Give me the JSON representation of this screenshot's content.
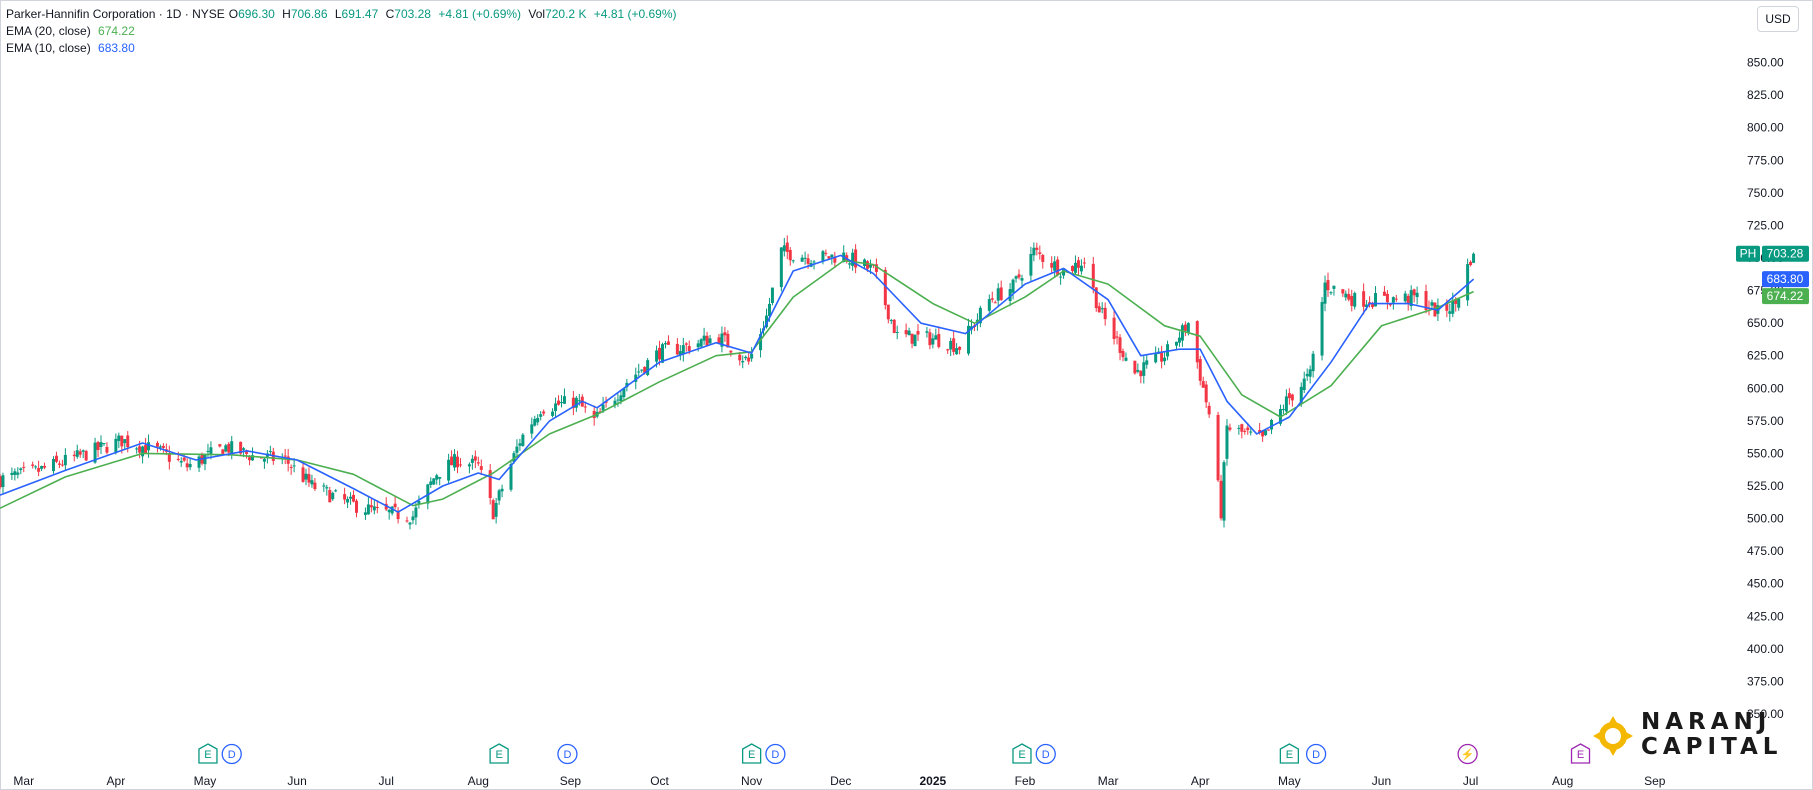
{
  "header": {
    "symbol_title": "Parker-Hannifin Corporation · 1D · NYSE",
    "open_label": "O",
    "open": "696.30",
    "high_label": "H",
    "high": "706.86",
    "low_label": "L",
    "low": "691.47",
    "close_label": "C",
    "close": "703.28",
    "change": "+4.81 (+0.69%)",
    "vol_label": "Vol",
    "volume": "720.2 K",
    "vol_change": "+4.81 (+0.69%)"
  },
  "indicators": [
    {
      "label": "EMA (20, close)",
      "value": "674.22",
      "color": "#4caf50"
    },
    {
      "label": "EMA (10, close)",
      "value": "683.80",
      "color": "#2962ff"
    }
  ],
  "currency": "USD",
  "price_tags": [
    {
      "label": "PH",
      "value": "703.28",
      "color": "#089981"
    },
    {
      "label": "",
      "value": "683.80",
      "color": "#2962ff"
    },
    {
      "label": "",
      "value": "674.22",
      "color": "#4caf50"
    }
  ],
  "logo": {
    "line1": "NARANJ",
    "line2": "CAPITAL"
  },
  "colors": {
    "up": "#089981",
    "down": "#f23645",
    "ema20": "#4caf50",
    "ema10": "#2962ff",
    "axis": "#131722"
  },
  "events": [
    {
      "type": "E",
      "date": "2024-05-02",
      "color": "#089981"
    },
    {
      "type": "D",
      "date": "2024-05-10",
      "color": "#2962ff"
    },
    {
      "type": "E",
      "date": "2024-08-08",
      "color": "#089981"
    },
    {
      "type": "D",
      "date": "2024-08-31",
      "color": "#2962ff"
    },
    {
      "type": "E",
      "date": "2024-11-01",
      "color": "#089981"
    },
    {
      "type": "D",
      "date": "2024-11-09",
      "color": "#2962ff"
    },
    {
      "type": "E",
      "date": "2025-01-31",
      "color": "#089981"
    },
    {
      "type": "D",
      "date": "2025-02-08",
      "color": "#2962ff"
    },
    {
      "type": "E",
      "date": "2025-05-01",
      "color": "#089981"
    },
    {
      "type": "D",
      "date": "2025-05-10",
      "color": "#2962ff"
    },
    {
      "type": "⚡",
      "date": "2025-06-30",
      "color": "#9c27b0"
    },
    {
      "type": "E",
      "date": "2025-08-07",
      "color": "#9c27b0"
    }
  ],
  "chart_data": {
    "type": "candlestick",
    "title": "Parker-Hannifin Corporation · 1D · NYSE",
    "xlim": [
      "2024-02-22",
      "2025-09-28"
    ],
    "ylim": [
      327,
      875
    ],
    "y_ticks": [
      350,
      375,
      400,
      425,
      450,
      475,
      500,
      525,
      550,
      575,
      600,
      625,
      650,
      675,
      700,
      725,
      750,
      775,
      800,
      825,
      850
    ],
    "x_ticks": [
      {
        "label": "Mar",
        "date": "2024-03-01"
      },
      {
        "label": "Apr",
        "date": "2024-04-01"
      },
      {
        "label": "May",
        "date": "2024-05-01"
      },
      {
        "label": "Jun",
        "date": "2024-06-01"
      },
      {
        "label": "Jul",
        "date": "2024-07-01"
      },
      {
        "label": "Aug",
        "date": "2024-08-01"
      },
      {
        "label": "Sep",
        "date": "2024-09-01"
      },
      {
        "label": "Oct",
        "date": "2024-10-01"
      },
      {
        "label": "Nov",
        "date": "2024-11-01"
      },
      {
        "label": "Dec",
        "date": "2024-12-01"
      },
      {
        "label": "2025",
        "date": "2025-01-01"
      },
      {
        "label": "Feb",
        "date": "2025-02-01"
      },
      {
        "label": "Mar",
        "date": "2025-03-01"
      },
      {
        "label": "Apr",
        "date": "2025-04-01"
      },
      {
        "label": "May",
        "date": "2025-05-01"
      },
      {
        "label": "Jun",
        "date": "2025-06-01"
      },
      {
        "label": "Jul",
        "date": "2025-07-01"
      },
      {
        "label": "Aug",
        "date": "2025-08-01"
      },
      {
        "label": "Sep",
        "date": "2025-09-01"
      }
    ],
    "close_path": [
      [
        "2024-02-22",
        530
      ],
      [
        "2024-03-05",
        536
      ],
      [
        "2024-03-20",
        548
      ],
      [
        "2024-04-03",
        560
      ],
      [
        "2024-04-15",
        552
      ],
      [
        "2024-04-25",
        540
      ],
      [
        "2024-05-08",
        555
      ],
      [
        "2024-05-17",
        548
      ],
      [
        "2024-05-28",
        545
      ],
      [
        "2024-06-06",
        525
      ],
      [
        "2024-06-18",
        512
      ],
      [
        "2024-06-28",
        505
      ],
      [
        "2024-07-10",
        502
      ],
      [
        "2024-07-18",
        535
      ],
      [
        "2024-07-25",
        545
      ],
      [
        "2024-08-01",
        540
      ],
      [
        "2024-08-06",
        505
      ],
      [
        "2024-08-15",
        560
      ],
      [
        "2024-08-22",
        585
      ],
      [
        "2024-09-03",
        590
      ],
      [
        "2024-09-09",
        575
      ],
      [
        "2024-09-20",
        605
      ],
      [
        "2024-10-01",
        628
      ],
      [
        "2024-10-10",
        632
      ],
      [
        "2024-10-21",
        640
      ],
      [
        "2024-10-31",
        620
      ],
      [
        "2024-11-06",
        655
      ],
      [
        "2024-11-11",
        705
      ],
      [
        "2024-11-22",
        700
      ],
      [
        "2024-12-02",
        702
      ],
      [
        "2024-12-12",
        690
      ],
      [
        "2024-12-20",
        640
      ],
      [
        "2025-01-02",
        638
      ],
      [
        "2025-01-10",
        632
      ],
      [
        "2025-01-20",
        668
      ],
      [
        "2025-01-28",
        678
      ],
      [
        "2025-02-04",
        705
      ],
      [
        "2025-02-14",
        690
      ],
      [
        "2025-02-21",
        698
      ],
      [
        "2025-02-26",
        660
      ],
      [
        "2025-03-10",
        612
      ],
      [
        "2025-03-20",
        625
      ],
      [
        "2025-03-28",
        650
      ],
      [
        "2025-04-04",
        580
      ],
      [
        "2025-04-08",
        505
      ],
      [
        "2025-04-10",
        570
      ],
      [
        "2025-04-22",
        560
      ],
      [
        "2025-04-30",
        590
      ],
      [
        "2025-05-08",
        610
      ],
      [
        "2025-05-13",
        680
      ],
      [
        "2025-05-23",
        668
      ],
      [
        "2025-06-03",
        668
      ],
      [
        "2025-06-13",
        670
      ],
      [
        "2025-06-20",
        658
      ],
      [
        "2025-06-26",
        665
      ],
      [
        "2025-07-01",
        700
      ],
      [
        "2025-07-02",
        703.28
      ]
    ],
    "series": [
      {
        "name": "EMA (20, close)",
        "last": 674.22,
        "points": [
          [
            "2024-02-22",
            508
          ],
          [
            "2024-03-15",
            532
          ],
          [
            "2024-04-10",
            550
          ],
          [
            "2024-05-10",
            549
          ],
          [
            "2024-06-01",
            545
          ],
          [
            "2024-06-20",
            534
          ],
          [
            "2024-07-10",
            510
          ],
          [
            "2024-07-20",
            515
          ],
          [
            "2024-08-06",
            535
          ],
          [
            "2024-08-25",
            565
          ],
          [
            "2024-09-10",
            580
          ],
          [
            "2024-10-01",
            605
          ],
          [
            "2024-10-20",
            625
          ],
          [
            "2024-11-01",
            628
          ],
          [
            "2024-11-15",
            670
          ],
          [
            "2024-12-02",
            698
          ],
          [
            "2024-12-12",
            695
          ],
          [
            "2025-01-01",
            665
          ],
          [
            "2025-01-15",
            650
          ],
          [
            "2025-02-01",
            670
          ],
          [
            "2025-02-14",
            690
          ],
          [
            "2025-03-01",
            680
          ],
          [
            "2025-03-20",
            648
          ],
          [
            "2025-04-01",
            640
          ],
          [
            "2025-04-15",
            595
          ],
          [
            "2025-04-28",
            578
          ],
          [
            "2025-05-15",
            602
          ],
          [
            "2025-06-01",
            648
          ],
          [
            "2025-06-20",
            662
          ],
          [
            "2025-07-02",
            674.22
          ]
        ]
      },
      {
        "name": "EMA (10, close)",
        "last": 683.8,
        "points": [
          [
            "2024-02-22",
            518
          ],
          [
            "2024-03-15",
            537
          ],
          [
            "2024-04-10",
            558
          ],
          [
            "2024-04-28",
            545
          ],
          [
            "2024-05-15",
            552
          ],
          [
            "2024-06-01",
            545
          ],
          [
            "2024-06-20",
            523
          ],
          [
            "2024-07-05",
            505
          ],
          [
            "2024-07-20",
            525
          ],
          [
            "2024-08-01",
            535
          ],
          [
            "2024-08-08",
            530
          ],
          [
            "2024-08-25",
            575
          ],
          [
            "2024-09-05",
            590
          ],
          [
            "2024-09-10",
            585
          ],
          [
            "2024-10-01",
            620
          ],
          [
            "2024-10-20",
            635
          ],
          [
            "2024-11-01",
            627
          ],
          [
            "2024-11-15",
            690
          ],
          [
            "2024-12-01",
            702
          ],
          [
            "2024-12-12",
            688
          ],
          [
            "2024-12-28",
            650
          ],
          [
            "2025-01-12",
            642
          ],
          [
            "2025-02-01",
            680
          ],
          [
            "2025-02-14",
            692
          ],
          [
            "2025-03-01",
            668
          ],
          [
            "2025-03-12",
            625
          ],
          [
            "2025-03-25",
            630
          ],
          [
            "2025-04-01",
            630
          ],
          [
            "2025-04-10",
            590
          ],
          [
            "2025-04-20",
            565
          ],
          [
            "2025-05-01",
            578
          ],
          [
            "2025-05-15",
            620
          ],
          [
            "2025-05-28",
            665
          ],
          [
            "2025-06-10",
            665
          ],
          [
            "2025-06-20",
            660
          ],
          [
            "2025-07-02",
            683.8
          ]
        ]
      }
    ]
  }
}
